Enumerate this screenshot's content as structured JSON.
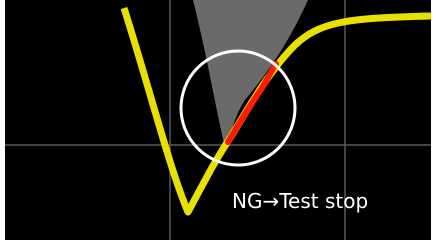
{
  "annotation": "NG→Test stop"
}
